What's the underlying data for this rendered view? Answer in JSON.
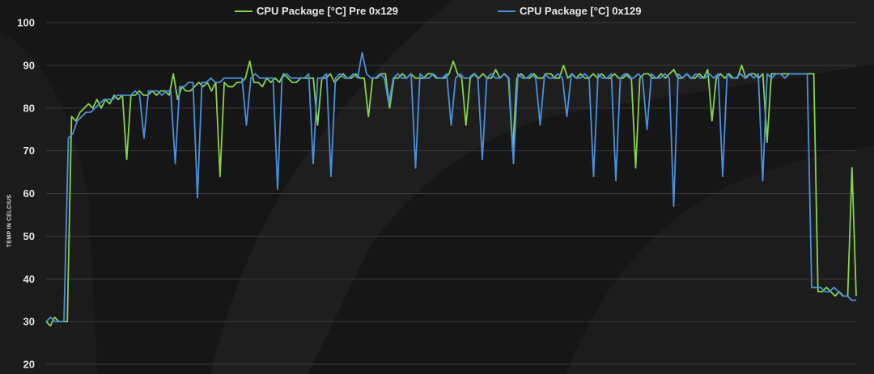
{
  "chart_data": {
    "type": "line",
    "ylabel": "TEMP IN CELCIUS",
    "ylim": [
      20,
      100
    ],
    "yticks": [
      100,
      90,
      80,
      70,
      60,
      50,
      40,
      30,
      20
    ],
    "grid": true,
    "legend_position": "top-center",
    "series": [
      {
        "name": "CPU Package [°C] Pre 0x129",
        "color": "#86d34f",
        "values": [
          30,
          29,
          31,
          30,
          30,
          30,
          78,
          77,
          79,
          80,
          81,
          80,
          82,
          80,
          82,
          81,
          83,
          82,
          83,
          68,
          83,
          83,
          84,
          83,
          83,
          84,
          83,
          84,
          84,
          83,
          88,
          82,
          85,
          84,
          84,
          85,
          86,
          85,
          86,
          84,
          86,
          64,
          86,
          85,
          85,
          86,
          86,
          87,
          91,
          86,
          86,
          85,
          87,
          86,
          87,
          86,
          88,
          87,
          86,
          86,
          87,
          87,
          87,
          87,
          76,
          87,
          87,
          88,
          86,
          87,
          88,
          87,
          87,
          88,
          87,
          87,
          78,
          87,
          87,
          88,
          88,
          80,
          87,
          87,
          88,
          87,
          88,
          87,
          87,
          87,
          88,
          88,
          87,
          87,
          87,
          88,
          91,
          88,
          87,
          76,
          87,
          88,
          87,
          88,
          87,
          87,
          89,
          87,
          88,
          87,
          70,
          87,
          88,
          87,
          87,
          88,
          87,
          87,
          88,
          88,
          87,
          87,
          90,
          87,
          88,
          87,
          88,
          87,
          87,
          88,
          87,
          88,
          87,
          87,
          88,
          87,
          87,
          88,
          87,
          66,
          87,
          88,
          88,
          87,
          87,
          88,
          87,
          88,
          89,
          87,
          87,
          88,
          87,
          87,
          88,
          87,
          89,
          77,
          87,
          88,
          87,
          88,
          87,
          87,
          90,
          87,
          88,
          88,
          87,
          88,
          72,
          88,
          88,
          88,
          88,
          88,
          88,
          88,
          88,
          88,
          88,
          88,
          37,
          37,
          38,
          37,
          36,
          37,
          36,
          36,
          66,
          36
        ]
      },
      {
        "name": "CPU Package [°C] 0x129",
        "color": "#4a90dd",
        "values": [
          30,
          31,
          30,
          30,
          30,
          73,
          74,
          77,
          78,
          79,
          79,
          80,
          81,
          82,
          82,
          82,
          83,
          83,
          83,
          83,
          84,
          83,
          73,
          84,
          84,
          84,
          83,
          84,
          84,
          67,
          85,
          85,
          86,
          86,
          59,
          86,
          86,
          87,
          86,
          86,
          87,
          87,
          87,
          87,
          87,
          76,
          87,
          88,
          87,
          87,
          87,
          87,
          61,
          87,
          88,
          87,
          87,
          87,
          87,
          88,
          67,
          87,
          87,
          88,
          64,
          87,
          88,
          87,
          87,
          88,
          87,
          93,
          88,
          87,
          87,
          88,
          87,
          81,
          87,
          88,
          87,
          87,
          88,
          66,
          88,
          87,
          87,
          88,
          87,
          87,
          88,
          76,
          87,
          88,
          87,
          87,
          88,
          87,
          68,
          87,
          88,
          87,
          87,
          88,
          87,
          67,
          88,
          87,
          87,
          88,
          87,
          76,
          88,
          87,
          87,
          88,
          87,
          78,
          88,
          87,
          87,
          88,
          87,
          64,
          88,
          87,
          87,
          88,
          63,
          87,
          88,
          87,
          87,
          88,
          87,
          75,
          88,
          87,
          87,
          88,
          87,
          57,
          88,
          87,
          88,
          87,
          88,
          87,
          87,
          88,
          87,
          88,
          64,
          88,
          87,
          87,
          88,
          87,
          88,
          87,
          88,
          63,
          88,
          87,
          88,
          88,
          87,
          88,
          88,
          88,
          88,
          88,
          38,
          38,
          38,
          37,
          37,
          38,
          37,
          36,
          36,
          35,
          35
        ]
      }
    ]
  }
}
